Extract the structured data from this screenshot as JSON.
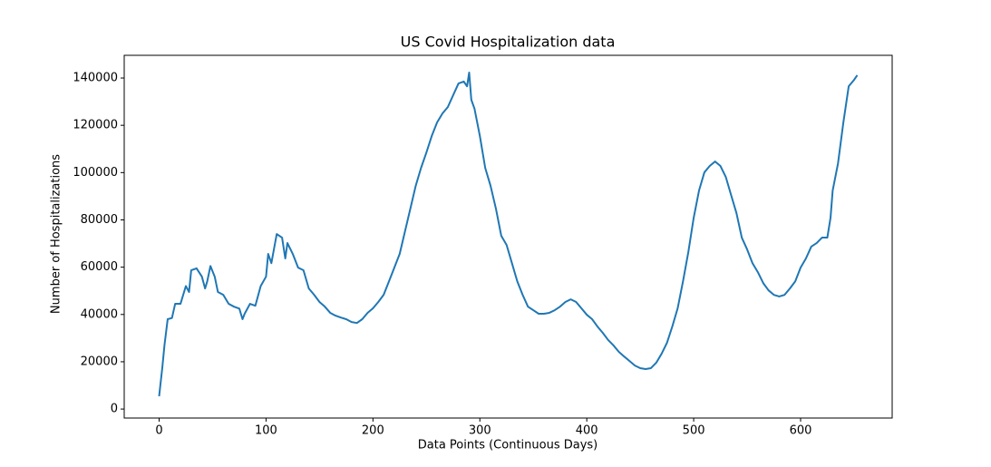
{
  "chart_data": {
    "type": "line",
    "title": "US Covid Hospitalization data",
    "xlabel": "Data Points (Continuous Days)",
    "ylabel": "Number of Hospitalizations",
    "x": [
      0,
      3,
      5,
      8,
      12,
      15,
      20,
      25,
      28,
      30,
      35,
      40,
      43,
      45,
      48,
      52,
      55,
      60,
      65,
      70,
      75,
      78,
      80,
      85,
      90,
      95,
      100,
      102,
      105,
      110,
      115,
      118,
      120,
      125,
      130,
      135,
      140,
      145,
      150,
      155,
      160,
      165,
      170,
      175,
      180,
      185,
      190,
      195,
      200,
      205,
      210,
      215,
      220,
      225,
      230,
      235,
      240,
      245,
      250,
      255,
      260,
      265,
      270,
      275,
      280,
      285,
      288,
      290,
      292,
      295,
      300,
      305,
      310,
      315,
      320,
      325,
      330,
      335,
      340,
      345,
      350,
      355,
      360,
      365,
      370,
      375,
      380,
      385,
      390,
      395,
      400,
      405,
      410,
      415,
      420,
      425,
      430,
      435,
      440,
      445,
      450,
      455,
      460,
      465,
      470,
      475,
      480,
      485,
      490,
      495,
      500,
      505,
      510,
      515,
      520,
      525,
      530,
      535,
      540,
      545,
      550,
      555,
      560,
      565,
      570,
      575,
      580,
      585,
      590,
      595,
      600,
      605,
      610,
      615,
      620,
      625,
      628,
      630,
      635,
      640,
      645,
      650,
      653
    ],
    "series": [
      {
        "name": "Hospitalizations",
        "color": "#1f77b4",
        "values": [
          5400,
          17600,
          27000,
          38000,
          38500,
          44500,
          44500,
          52000,
          49500,
          58700,
          59500,
          56000,
          51000,
          54000,
          60500,
          56000,
          49500,
          48300,
          44500,
          43300,
          42500,
          38000,
          40300,
          44500,
          43700,
          52000,
          56000,
          65600,
          61700,
          74000,
          72500,
          63700,
          70200,
          65600,
          59800,
          58700,
          51000,
          48300,
          45300,
          43300,
          40700,
          39500,
          38700,
          38000,
          36800,
          36400,
          38000,
          40700,
          42600,
          45300,
          48300,
          54000,
          59800,
          65600,
          75200,
          84800,
          94400,
          102000,
          108500,
          115500,
          121200,
          125000,
          127700,
          132700,
          137700,
          138500,
          136500,
          142300,
          130800,
          127000,
          115500,
          102000,
          94400,
          84800,
          73300,
          69400,
          61700,
          54000,
          48300,
          43300,
          41800,
          40300,
          40300,
          40700,
          41800,
          43300,
          45300,
          46400,
          45300,
          42600,
          39900,
          38000,
          34900,
          32200,
          29200,
          26900,
          24200,
          22200,
          20300,
          18400,
          17300,
          16900,
          17300,
          19600,
          23400,
          28000,
          34900,
          42600,
          54000,
          66400,
          80900,
          92400,
          100100,
          102800,
          104700,
          102800,
          98200,
          90500,
          82900,
          72500,
          67500,
          61700,
          57900,
          53300,
          50200,
          48300,
          47600,
          48300,
          51000,
          54000,
          59800,
          63700,
          68700,
          70200,
          72500,
          72500,
          80900,
          92400,
          103900,
          121200,
          136500,
          139200,
          141200
        ]
      }
    ],
    "xlim": [
      -32.65,
      685.65
    ],
    "ylim": [
      -3800,
      149600
    ],
    "xticks": [
      0,
      100,
      200,
      300,
      400,
      500,
      600
    ],
    "yticks": [
      0,
      20000,
      40000,
      60000,
      80000,
      100000,
      120000,
      140000
    ]
  }
}
